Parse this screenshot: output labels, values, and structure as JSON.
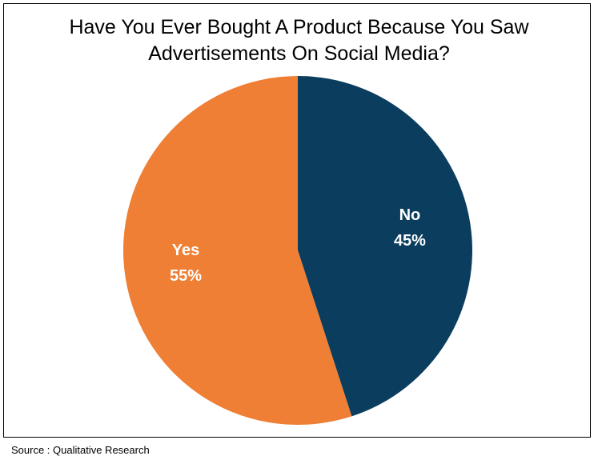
{
  "chart_data": {
    "type": "pie",
    "title": "Have You Ever Bought A Product Because You Saw Advertisements On Social Media?",
    "slices": [
      {
        "label": "No",
        "value": 45,
        "percent_label": "45%",
        "color": "#0a3d5e"
      },
      {
        "label": "Yes",
        "value": 55,
        "percent_label": "55%",
        "color": "#ee7f34"
      }
    ],
    "start_angle": "12 o'clock",
    "direction": "clockwise",
    "legend": "none"
  },
  "source": "Source : Qualitative Research",
  "colors": {
    "label_text": "#ffffff",
    "frame_border": "#000000"
  }
}
